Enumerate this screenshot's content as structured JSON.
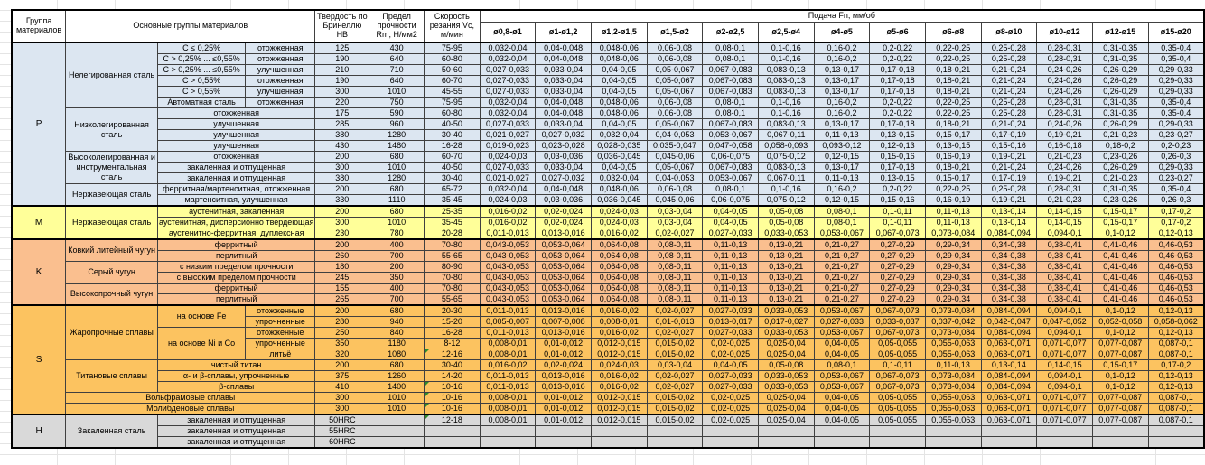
{
  "header": {
    "col_group": "Группа материалов",
    "col_main": "Основные группы материалов",
    "col_hb": "Твердость по Бринеллю HB",
    "col_rm": "Предел прочности Rm, Н/мм2",
    "col_vc": "Скорость резания Vc, м/мин",
    "feed_title": "Подача Fn, мм/об",
    "feed_cols": [
      "ø0,8-ø1",
      "ø1-ø1,2",
      "ø1,2-ø1,5",
      "ø1,5-ø2",
      "ø2-ø2,5",
      "ø2,5-ø4",
      "ø4-ø5",
      "ø5-ø6",
      "ø6-ø8",
      "ø8-ø10",
      "ø10-ø12",
      "ø12-ø15",
      "ø15-ø20"
    ]
  },
  "colors": {
    "group_p": "#dce6f1",
    "group_m": "#ffff99",
    "group_k": "#fabf8f",
    "group_s": "#fcc360",
    "group_h": "#d9d9d9",
    "flag": "#2e8b2e",
    "grid": "#e4e4e4",
    "border": "#404040"
  },
  "feed_patterns": {
    "A": [
      "0,032-0,04",
      "0,04-0,048",
      "0,048-0,06",
      "0,06-0,08",
      "0,08-0,1",
      "0,1-0,16",
      "0,16-0,2",
      "0,2-0,22",
      "0,22-0,25",
      "0,25-0,28",
      "0,28-0,31",
      "0,31-0,35",
      "0,35-0,4"
    ],
    "B": [
      "0,027-0,033",
      "0,033-0,04",
      "0,04-0,05",
      "0,05-0,067",
      "0,067-0,083",
      "0,083-0,13",
      "0,13-0,17",
      "0,17-0,18",
      "0,18-0,21",
      "0,21-0,24",
      "0,24-0,26",
      "0,26-0,29",
      "0,29-0,33"
    ],
    "C": [
      "0,021-0,027",
      "0,027-0,032",
      "0,032-0,04",
      "0,04-0,053",
      "0,053-0,067",
      "0,067-0,11",
      "0,11-0,13",
      "0,13-0,15",
      "0,15-0,17",
      "0,17-0,19",
      "0,19-0,21",
      "0,21-0,23",
      "0,23-0,27"
    ],
    "D": [
      "0,019-0,023",
      "0,023-0,028",
      "0,028-0,035",
      "0,035-0,047",
      "0,047-0,058",
      "0,058-0,093",
      "0,093-0,12",
      "0,12-0,13",
      "0,13-0,15",
      "0,15-0,16",
      "0,16-0,18",
      "0,18-0,2",
      "0,2-0,23"
    ],
    "E": [
      "0,024-0,03",
      "0,03-0,036",
      "0,036-0,045",
      "0,045-0,06",
      "0,06-0,075",
      "0,075-0,12",
      "0,12-0,15",
      "0,15-0,16",
      "0,16-0,19",
      "0,19-0,21",
      "0,21-0,23",
      "0,23-0,26",
      "0,26-0,3"
    ],
    "F": [
      "0,016-0,02",
      "0,02-0,024",
      "0,024-0,03",
      "0,03-0,04",
      "0,04-0,05",
      "0,05-0,08",
      "0,08-0,1",
      "0,1-0,11",
      "0,11-0,13",
      "0,13-0,14",
      "0,14-0,15",
      "0,15-0,17",
      "0,17-0,2"
    ],
    "G": [
      "0,011-0,013",
      "0,013-0,016",
      "0,016-0,02",
      "0,02-0,027",
      "0,027-0,033",
      "0,033-0,053",
      "0,053-0,067",
      "0,067-0,073",
      "0,073-0,084",
      "0,084-0,094",
      "0,094-0,1",
      "0,1-0,12",
      "0,12-0,13"
    ],
    "H": [
      "0,043-0,053",
      "0,053-0,064",
      "0,064-0,08",
      "0,08-0,11",
      "0,11-0,13",
      "0,13-0,21",
      "0,21-0,27",
      "0,27-0,29",
      "0,29-0,34",
      "0,34-0,38",
      "0,38-0,41",
      "0,41-0,46",
      "0,46-0,53"
    ],
    "I": [
      "0,005-0,007",
      "0,007-0,008",
      "0,008-0,01",
      "0,01-0,013",
      "0,013-0,017",
      "0,017-0,027",
      "0,027-0,033",
      "0,033-0,037",
      "0,037-0,042",
      "0,042-0,047",
      "0,047-0,052",
      "0,052-0,058",
      "0,058-0,062"
    ],
    "J": [
      "0,008-0,01",
      "0,01-0,012",
      "0,012-0,015",
      "0,015-0,02",
      "0,02-0,025",
      "0,025-0,04",
      "0,04-0,05",
      "0,05-0,055",
      "0,055-0,063",
      "0,063-0,071",
      "0,071-0,077",
      "0,077-0,087",
      "0,087-0,1"
    ],
    "EMPTY": [
      "",
      "",
      "",
      "",
      "",
      "",
      "",
      "",
      "",
      "",
      "",
      "",
      ""
    ]
  },
  "rows": [
    {
      "cls": "p",
      "g": "P",
      "gspan": 15,
      "n": "Нелегированная сталь",
      "nspan": 6,
      "s": "C ≤ 0,25%",
      "st": "отожженная",
      "hb": "125",
      "rm": "430",
      "vc": "75-95",
      "f": "A"
    },
    {
      "cls": "p",
      "s": "C > 0,25% ... ≤0,55%",
      "st": "отожженная",
      "hb": "190",
      "rm": "640",
      "vc": "60-80",
      "f": "A"
    },
    {
      "cls": "p",
      "s": "C > 0,25% ... ≤0,55%",
      "st": "улучшенная",
      "hb": "210",
      "rm": "710",
      "vc": "50-60",
      "f": "B"
    },
    {
      "cls": "p",
      "s": "C > 0,55%",
      "st": "отожженная",
      "hb": "190",
      "rm": "640",
      "vc": "60-70",
      "f": "B"
    },
    {
      "cls": "p",
      "s": "C > 0,55%",
      "st": "улучшенная",
      "hb": "300",
      "rm": "1010",
      "vc": "45-55",
      "f": "B"
    },
    {
      "cls": "p",
      "s": "Автоматная сталь",
      "st": "отожженная",
      "hb": "220",
      "rm": "750",
      "vc": "75-95",
      "f": "A"
    },
    {
      "cls": "p",
      "n": "Низколегированная сталь",
      "nspan": 4,
      "st": "отожженная",
      "stspan": 2,
      "hb": "175",
      "rm": "590",
      "vc": "60-80",
      "f": "A"
    },
    {
      "cls": "p",
      "st": "улучшенная",
      "stspan": 2,
      "hb": "285",
      "rm": "960",
      "vc": "40-50",
      "f": "B"
    },
    {
      "cls": "p",
      "st": "улучшенная",
      "stspan": 2,
      "hb": "380",
      "rm": "1280",
      "vc": "30-40",
      "f": "C"
    },
    {
      "cls": "p",
      "st": "улучшенная",
      "stspan": 2,
      "hb": "430",
      "rm": "1480",
      "vc": "16-28",
      "f": "D"
    },
    {
      "cls": "p",
      "n": "Высоколегированная и инструментальная сталь",
      "nspan": 3,
      "st": "отожженная",
      "stspan": 2,
      "hb": "200",
      "rm": "680",
      "vc": "60-70",
      "f": "E"
    },
    {
      "cls": "p",
      "st": "закаленная и отпущенная",
      "stspan": 2,
      "hb": "300",
      "rm": "1010",
      "vc": "40-50",
      "f": "B"
    },
    {
      "cls": "p",
      "st": "закаленная и отпущенная",
      "stspan": 2,
      "hb": "380",
      "rm": "1280",
      "vc": "30-40",
      "f": "C"
    },
    {
      "cls": "p",
      "n": "Нержавеющая сталь",
      "nspan": 2,
      "st": "ферритная/мартенситная, отожженная",
      "stspan": 2,
      "hb": "200",
      "rm": "680",
      "vc": "65-72",
      "f": "A"
    },
    {
      "cls": "p",
      "st": "мартенситная, улучшенная",
      "stspan": 2,
      "hb": "330",
      "rm": "1110",
      "vc": "35-45",
      "f": "E"
    },
    {
      "cls": "m",
      "top": 1,
      "g": "M",
      "gspan": 3,
      "n": "Нержавеющая сталь",
      "nspan": 3,
      "st": "аустенитная, закаленная",
      "stspan": 2,
      "hb": "200",
      "rm": "680",
      "vc": "25-35",
      "f": "F"
    },
    {
      "cls": "m",
      "st": "аустенитная, дисперсионно твердеющая",
      "stspan": 2,
      "hb": "300",
      "rm": "1010",
      "vc": "35-45",
      "f": "F"
    },
    {
      "cls": "m",
      "st": "аустенитно-ферритная, дуплексная",
      "stspan": 2,
      "hb": "230",
      "rm": "780",
      "vc": "20-28",
      "f": "G"
    },
    {
      "cls": "k",
      "top": 1,
      "g": "K",
      "gspan": 6,
      "n": "Ковкий литейный чугун",
      "nspan": 2,
      "st": "ферритный",
      "stspan": 2,
      "hb": "200",
      "rm": "400",
      "vc": "70-80",
      "f": "H"
    },
    {
      "cls": "k",
      "st": "перлитный",
      "stspan": 2,
      "hb": "260",
      "rm": "700",
      "vc": "55-65",
      "f": "H"
    },
    {
      "cls": "k",
      "n": "Серый чугун",
      "nspan": 2,
      "st": "с низким пределом прочности",
      "stspan": 2,
      "hb": "180",
      "rm": "200",
      "vc": "80-90",
      "f": "H"
    },
    {
      "cls": "k",
      "st": "с высоким пределом прочности",
      "stspan": 2,
      "hb": "245",
      "rm": "350",
      "vc": "70-80",
      "f": "H"
    },
    {
      "cls": "k",
      "n": "Высокопрочный чугун",
      "nspan": 2,
      "st": "ферритный",
      "stspan": 2,
      "hb": "155",
      "rm": "400",
      "vc": "70-80",
      "f": "H"
    },
    {
      "cls": "k",
      "st": "перлитный",
      "stspan": 2,
      "hb": "265",
      "rm": "700",
      "vc": "55-65",
      "f": "H"
    },
    {
      "cls": "s",
      "top": 1,
      "g": "S",
      "gspan": 10,
      "n": "Жаропрочные сплавы",
      "nspan": 5,
      "s": "на основе Fe",
      "sspan": 2,
      "st": "отожженные",
      "hb": "200",
      "rm": "680",
      "vc": "20-30",
      "f": "G"
    },
    {
      "cls": "s",
      "st": "упрочненные",
      "hb": "280",
      "rm": "940",
      "vc": "15-20",
      "f": "I"
    },
    {
      "cls": "s",
      "s": "на основе Ni и Co",
      "sspan": 3,
      "st": "отожженные",
      "hb": "250",
      "rm": "840",
      "vc": "16-28",
      "f": "G"
    },
    {
      "cls": "s",
      "st": "упрочненные",
      "hb": "350",
      "rm": "1180",
      "vc": "8-12",
      "f": "J"
    },
    {
      "cls": "s",
      "st": "литьё",
      "hb": "320",
      "rm": "1080",
      "vc": "12-16",
      "flag": 1,
      "f": "J"
    },
    {
      "cls": "s",
      "n": "Титановые сплавы",
      "nspan": 3,
      "st": "чистый титан",
      "stspan": 2,
      "hb": "200",
      "rm": "680",
      "vc": "30-40",
      "f": "F"
    },
    {
      "cls": "s",
      "st": "α- и β-сплавы, упрочненные",
      "stspan": 2,
      "hb": "375",
      "rm": "1260",
      "vc": "14-20",
      "f": "G"
    },
    {
      "cls": "s",
      "st": "β-сплавы",
      "stspan": 2,
      "hb": "410",
      "rm": "1400",
      "vc": "10-16",
      "flag": 1,
      "f": "G"
    },
    {
      "cls": "s",
      "wide": "Вольфрамовые сплавы",
      "hb": "300",
      "rm": "1010",
      "vc": "10-16",
      "flag": 1,
      "f": "J"
    },
    {
      "cls": "s",
      "wide": "Молибденовые сплавы",
      "hb": "300",
      "rm": "1010",
      "vc": "10-16",
      "flag": 1,
      "f": "J"
    },
    {
      "cls": "h",
      "top": 1,
      "g": "H",
      "gspan": 3,
      "n": "Закаленная сталь",
      "nspan": 3,
      "st": "закаленная и отпущенная",
      "stspan": 2,
      "hb": "50HRC",
      "rm": "",
      "vc": "12-18",
      "flag": 1,
      "f": "J"
    },
    {
      "cls": "h",
      "st": "закаленная и отпущенная",
      "stspan": 2,
      "hb": "55HRC",
      "rm": "",
      "vc": "",
      "f": "EMPTY"
    },
    {
      "cls": "h",
      "st": "закаленная и отпущенная",
      "stspan": 2,
      "hb": "60HRC",
      "rm": "",
      "vc": "",
      "f": "EMPTY"
    }
  ]
}
